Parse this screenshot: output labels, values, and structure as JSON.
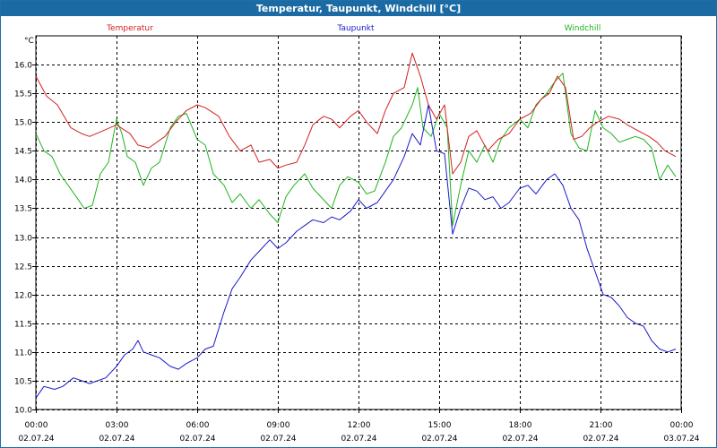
{
  "window": {
    "title": "Temperatur, Taupunkt, Windchill [°C]"
  },
  "chart_data": {
    "type": "line",
    "title": "Temperatur, Taupunkt, Windchill [°C]",
    "ylabel": "°C",
    "ylim": [
      10.0,
      16.5
    ],
    "xlim": [
      0,
      24
    ],
    "grid": true,
    "y_ticks": [
      "10.0",
      "10.5",
      "11.0",
      "11.5",
      "12.0",
      "12.5",
      "13.0",
      "13.5",
      "14.0",
      "14.5",
      "15.0",
      "15.5",
      "16.0"
    ],
    "x_ticks": [
      {
        "pos": 0,
        "time": "00:00",
        "date": "02.07.24"
      },
      {
        "pos": 3,
        "time": "03:00",
        "date": "02.07.24"
      },
      {
        "pos": 6,
        "time": "06:00",
        "date": "02.07.24"
      },
      {
        "pos": 9,
        "time": "09:00",
        "date": "02.07.24"
      },
      {
        "pos": 12,
        "time": "12:00",
        "date": "02.07.24"
      },
      {
        "pos": 15,
        "time": "15:00",
        "date": "02.07.24"
      },
      {
        "pos": 18,
        "time": "18:00",
        "date": "02.07.24"
      },
      {
        "pos": 21,
        "time": "21:00",
        "date": "02.07.24"
      },
      {
        "pos": 24,
        "time": "00:00",
        "date": "03.07.24"
      }
    ],
    "series": [
      {
        "name": "Temperatur",
        "color": "#d42020",
        "x": [
          0,
          0.4,
          0.8,
          1.3,
          1.7,
          2.0,
          2.5,
          3.0,
          3.5,
          3.8,
          4.2,
          4.8,
          5.2,
          5.6,
          6.0,
          6.3,
          6.8,
          7.2,
          7.6,
          8.0,
          8.3,
          8.7,
          9.0,
          9.3,
          9.7,
          10.0,
          10.3,
          10.7,
          11.0,
          11.3,
          11.7,
          12.0,
          12.3,
          12.7,
          13.0,
          13.3,
          13.7,
          14.0,
          14.3,
          14.6,
          14.9,
          15.2,
          15.5,
          15.8,
          16.1,
          16.4,
          16.8,
          17.2,
          17.6,
          18.0,
          18.4,
          18.8,
          19.1,
          19.4,
          19.7,
          20.0,
          20.3,
          20.6,
          20.9,
          21.3,
          21.7,
          22.0,
          22.4,
          22.8,
          23.1,
          23.4,
          23.8
        ],
        "values": [
          15.8,
          15.45,
          15.3,
          14.9,
          14.8,
          14.75,
          14.85,
          14.95,
          14.8,
          14.6,
          14.55,
          14.75,
          15.0,
          15.2,
          15.3,
          15.25,
          15.1,
          14.75,
          14.5,
          14.6,
          14.3,
          14.35,
          14.2,
          14.25,
          14.3,
          14.6,
          14.95,
          15.1,
          15.05,
          14.9,
          15.1,
          15.2,
          15.0,
          14.8,
          15.2,
          15.5,
          15.6,
          16.2,
          15.8,
          15.3,
          15.05,
          15.3,
          14.1,
          14.3,
          14.75,
          14.85,
          14.5,
          14.7,
          14.8,
          15.05,
          15.15,
          15.4,
          15.5,
          15.8,
          15.6,
          14.7,
          14.75,
          14.9,
          15.0,
          15.1,
          15.05,
          14.95,
          14.85,
          14.75,
          14.65,
          14.5,
          14.4
        ]
      },
      {
        "name": "Taupunkt",
        "color": "#1a1ac8",
        "x": [
          0,
          0.3,
          0.7,
          1.0,
          1.4,
          1.7,
          2.0,
          2.3,
          2.6,
          3.0,
          3.3,
          3.6,
          3.8,
          4.0,
          4.3,
          4.6,
          5.0,
          5.3,
          5.6,
          6.0,
          6.3,
          6.6,
          7.0,
          7.3,
          7.6,
          8.0,
          8.3,
          8.7,
          9.0,
          9.3,
          9.7,
          10.0,
          10.3,
          10.7,
          11.0,
          11.3,
          11.7,
          12.0,
          12.3,
          12.7,
          13.0,
          13.3,
          13.7,
          14.0,
          14.3,
          14.6,
          14.9,
          15.2,
          15.5,
          15.8,
          16.1,
          16.4,
          16.7,
          17.0,
          17.3,
          17.6,
          18.0,
          18.3,
          18.6,
          19.0,
          19.3,
          19.6,
          19.9,
          20.2,
          20.5,
          20.8,
          21.1,
          21.4,
          21.7,
          22.0,
          22.3,
          22.6,
          22.9,
          23.2,
          23.5,
          23.8
        ],
        "values": [
          10.2,
          10.4,
          10.35,
          10.4,
          10.55,
          10.5,
          10.45,
          10.5,
          10.55,
          10.75,
          10.95,
          11.05,
          11.2,
          11.0,
          10.95,
          10.9,
          10.75,
          10.7,
          10.8,
          10.9,
          11.05,
          11.1,
          11.7,
          12.1,
          12.3,
          12.6,
          12.75,
          12.95,
          12.8,
          12.9,
          13.1,
          13.2,
          13.3,
          13.25,
          13.35,
          13.3,
          13.45,
          13.65,
          13.5,
          13.6,
          13.8,
          14.0,
          14.4,
          14.8,
          14.6,
          15.3,
          14.5,
          14.45,
          13.05,
          13.5,
          13.85,
          13.8,
          13.65,
          13.7,
          13.5,
          13.6,
          13.85,
          13.9,
          13.75,
          14.0,
          14.1,
          13.9,
          13.5,
          13.3,
          12.8,
          12.4,
          12.0,
          11.95,
          11.8,
          11.6,
          11.5,
          11.45,
          11.2,
          11.05,
          11.0,
          11.05
        ]
      },
      {
        "name": "Windchill",
        "color": "#20b420",
        "x": [
          0,
          0.3,
          0.6,
          0.9,
          1.2,
          1.5,
          1.8,
          2.1,
          2.4,
          2.7,
          3.0,
          3.2,
          3.4,
          3.7,
          4.0,
          4.3,
          4.6,
          5.0,
          5.3,
          5.6,
          6.0,
          6.3,
          6.6,
          7.0,
          7.3,
          7.6,
          8.0,
          8.3,
          8.7,
          9.0,
          9.3,
          9.6,
          10.0,
          10.3,
          10.6,
          11.0,
          11.3,
          11.6,
          12.0,
          12.3,
          12.6,
          13.0,
          13.3,
          13.6,
          14.0,
          14.2,
          14.4,
          14.7,
          15.0,
          15.3,
          15.5,
          15.8,
          16.1,
          16.4,
          16.7,
          17.0,
          17.3,
          17.6,
          18.0,
          18.3,
          18.6,
          19.0,
          19.3,
          19.6,
          19.9,
          20.2,
          20.5,
          20.8,
          21.1,
          21.4,
          21.7,
          22.0,
          22.3,
          22.6,
          22.9,
          23.2,
          23.5,
          23.8
        ],
        "values": [
          14.8,
          14.5,
          14.4,
          14.1,
          13.9,
          13.7,
          13.5,
          13.55,
          14.1,
          14.3,
          15.05,
          14.8,
          14.4,
          14.3,
          13.9,
          14.2,
          14.3,
          14.9,
          15.1,
          15.15,
          14.7,
          14.6,
          14.1,
          13.9,
          13.6,
          13.75,
          13.5,
          13.65,
          13.4,
          13.25,
          13.7,
          13.9,
          14.1,
          13.85,
          13.7,
          13.5,
          13.9,
          14.05,
          13.95,
          13.75,
          13.8,
          14.3,
          14.75,
          14.9,
          15.3,
          15.6,
          14.9,
          14.75,
          15.15,
          14.9,
          13.2,
          13.9,
          14.5,
          14.3,
          14.6,
          14.3,
          14.7,
          14.9,
          15.05,
          14.9,
          15.3,
          15.5,
          15.7,
          15.85,
          14.8,
          14.55,
          14.5,
          15.2,
          14.9,
          14.8,
          14.65,
          14.7,
          14.75,
          14.7,
          14.55,
          14.0,
          14.25,
          14.05
        ]
      }
    ]
  }
}
